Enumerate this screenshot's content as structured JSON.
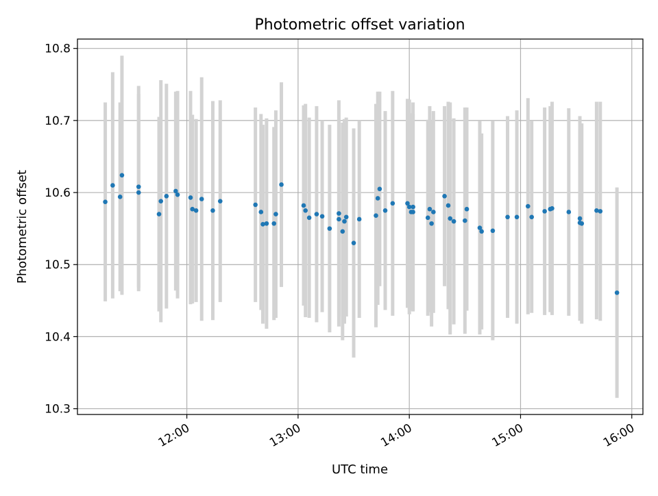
{
  "chart_data": {
    "type": "scatter",
    "title": "Photometric offset variation",
    "xlabel": "UTC time",
    "ylabel": "Photometric offset",
    "x_ticks": [
      "12:00",
      "13:00",
      "14:00",
      "15:00",
      "16:00"
    ],
    "y_ticks": [
      "10.3",
      "10.4",
      "10.5",
      "10.6",
      "10.7",
      "10.8"
    ],
    "xlim": [
      "11:01",
      "16:06"
    ],
    "ylim": [
      10.292,
      10.813
    ],
    "grid": true,
    "colors": {
      "points": "#1f77b4",
      "errorbars": "#d3d3d3",
      "grid": "#b0b0b0"
    },
    "points": [
      {
        "x": "11:16",
        "y": 10.587,
        "err": 0.138
      },
      {
        "x": "11:20",
        "y": 10.61,
        "err": 0.157
      },
      {
        "x": "11:24",
        "y": 10.594,
        "err": 0.131
      },
      {
        "x": "11:25",
        "y": 10.624,
        "err": 0.166
      },
      {
        "x": "11:34",
        "y": 10.6,
        "err": 0.137
      },
      {
        "x": "11:34",
        "y": 10.608,
        "err": 0.14
      },
      {
        "x": "11:45",
        "y": 10.57,
        "err": 0.135
      },
      {
        "x": "11:46",
        "y": 10.588,
        "err": 0.168
      },
      {
        "x": "11:49",
        "y": 10.595,
        "err": 0.156
      },
      {
        "x": "11:54",
        "y": 10.602,
        "err": 0.138
      },
      {
        "x": "11:55",
        "y": 10.597,
        "err": 0.144
      },
      {
        "x": "12:02",
        "y": 10.593,
        "err": 0.148
      },
      {
        "x": "12:03",
        "y": 10.577,
        "err": 0.131
      },
      {
        "x": "12:05",
        "y": 10.575,
        "err": 0.127
      },
      {
        "x": "12:08",
        "y": 10.591,
        "err": 0.169
      },
      {
        "x": "12:14",
        "y": 10.575,
        "err": 0.152
      },
      {
        "x": "12:18",
        "y": 10.588,
        "err": 0.14
      },
      {
        "x": "12:37",
        "y": 10.583,
        "err": 0.135
      },
      {
        "x": "12:40",
        "y": 10.573,
        "err": 0.136
      },
      {
        "x": "12:41",
        "y": 10.556,
        "err": 0.138
      },
      {
        "x": "12:43",
        "y": 10.557,
        "err": 0.146
      },
      {
        "x": "12:47",
        "y": 10.557,
        "err": 0.134
      },
      {
        "x": "12:48",
        "y": 10.57,
        "err": 0.144
      },
      {
        "x": "12:51",
        "y": 10.611,
        "err": 0.142
      },
      {
        "x": "13:03",
        "y": 10.582,
        "err": 0.139
      },
      {
        "x": "13:04",
        "y": 10.575,
        "err": 0.148
      },
      {
        "x": "13:06",
        "y": 10.565,
        "err": 0.139
      },
      {
        "x": "13:10",
        "y": 10.57,
        "err": 0.15
      },
      {
        "x": "13:13",
        "y": 10.567,
        "err": 0.133
      },
      {
        "x": "13:17",
        "y": 10.55,
        "err": 0.144
      },
      {
        "x": "13:22",
        "y": 10.571,
        "err": 0.157
      },
      {
        "x": "13:22",
        "y": 10.563,
        "err": 0.135
      },
      {
        "x": "13:24",
        "y": 10.546,
        "err": 0.151
      },
      {
        "x": "13:25",
        "y": 10.56,
        "err": 0.142
      },
      {
        "x": "13:26",
        "y": 10.566,
        "err": 0.138
      },
      {
        "x": "13:30",
        "y": 10.53,
        "err": 0.159
      },
      {
        "x": "13:33",
        "y": 10.563,
        "err": 0.137
      },
      {
        "x": "13:42",
        "y": 10.568,
        "err": 0.155
      },
      {
        "x": "13:43",
        "y": 10.592,
        "err": 0.148
      },
      {
        "x": "13:44",
        "y": 10.605,
        "err": 0.135
      },
      {
        "x": "13:47",
        "y": 10.575,
        "err": 0.138
      },
      {
        "x": "13:51",
        "y": 10.585,
        "err": 0.156
      },
      {
        "x": "13:59",
        "y": 10.585,
        "err": 0.145
      },
      {
        "x": "14:00",
        "y": 10.58,
        "err": 0.149
      },
      {
        "x": "14:01",
        "y": 10.573,
        "err": 0.137
      },
      {
        "x": "14:02",
        "y": 10.573,
        "err": 0.136
      },
      {
        "x": "14:02",
        "y": 10.58,
        "err": 0.145
      },
      {
        "x": "14:10",
        "y": 10.565,
        "err": 0.136
      },
      {
        "x": "14:11",
        "y": 10.577,
        "err": 0.143
      },
      {
        "x": "14:12",
        "y": 10.557,
        "err": 0.143
      },
      {
        "x": "14:13",
        "y": 10.573,
        "err": 0.14
      },
      {
        "x": "14:19",
        "y": 10.595,
        "err": 0.125
      },
      {
        "x": "14:21",
        "y": 10.582,
        "err": 0.144
      },
      {
        "x": "14:22",
        "y": 10.564,
        "err": 0.161
      },
      {
        "x": "14:24",
        "y": 10.56,
        "err": 0.143
      },
      {
        "x": "14:30",
        "y": 10.561,
        "err": 0.157
      },
      {
        "x": "14:31",
        "y": 10.577,
        "err": 0.141
      },
      {
        "x": "14:38",
        "y": 10.551,
        "err": 0.148
      },
      {
        "x": "14:39",
        "y": 10.546,
        "err": 0.136
      },
      {
        "x": "14:45",
        "y": 10.547,
        "err": 0.152
      },
      {
        "x": "14:53",
        "y": 10.566,
        "err": 0.14
      },
      {
        "x": "14:58",
        "y": 10.566,
        "err": 0.148
      },
      {
        "x": "15:04",
        "y": 10.581,
        "err": 0.15
      },
      {
        "x": "15:06",
        "y": 10.566,
        "err": 0.133
      },
      {
        "x": "15:13",
        "y": 10.574,
        "err": 0.144
      },
      {
        "x": "15:16",
        "y": 10.577,
        "err": 0.143
      },
      {
        "x": "15:17",
        "y": 10.578,
        "err": 0.148
      },
      {
        "x": "15:26",
        "y": 10.573,
        "err": 0.144
      },
      {
        "x": "15:32",
        "y": 10.564,
        "err": 0.142
      },
      {
        "x": "15:32",
        "y": 10.558,
        "err": 0.13
      },
      {
        "x": "15:33",
        "y": 10.557,
        "err": 0.139
      },
      {
        "x": "15:41",
        "y": 10.575,
        "err": 0.151
      },
      {
        "x": "15:43",
        "y": 10.574,
        "err": 0.152
      },
      {
        "x": "15:52",
        "y": 10.461,
        "err": 0.146
      }
    ]
  }
}
